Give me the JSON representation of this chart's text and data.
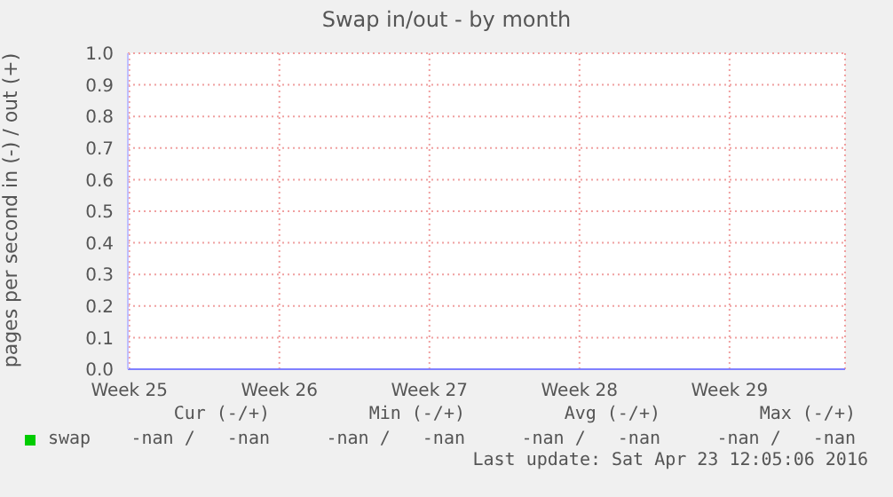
{
  "chart_data": {
    "type": "line",
    "title": "Swap in/out - by month",
    "ylabel": "pages per second in (-) / out (+)",
    "categories": [
      "Week 25",
      "Week 26",
      "Week 27",
      "Week 28",
      "Week 29"
    ],
    "series": [
      {
        "name": "swap",
        "color": "#00cc00",
        "values": [
          null,
          null,
          null,
          null,
          null
        ]
      }
    ],
    "ylim": [
      0,
      1
    ],
    "yticks": [
      {
        "value": 0,
        "label": "0.0"
      },
      {
        "value": 0.1,
        "label": "0.1"
      },
      {
        "value": 0.2,
        "label": "0.2"
      },
      {
        "value": 0.3,
        "label": "0.3"
      },
      {
        "value": 0.4,
        "label": "0.4"
      },
      {
        "value": 0.5,
        "label": "0.5"
      },
      {
        "value": 0.6,
        "label": "0.6"
      },
      {
        "value": 0.7,
        "label": "0.7"
      },
      {
        "value": 0.8,
        "label": "0.8"
      },
      {
        "value": 0.9,
        "label": "0.9"
      },
      {
        "value": 1,
        "label": "1.0"
      }
    ],
    "grid": true,
    "legend": "bottom",
    "annotations": [
      "Cur (-/+)",
      "Min (-/+)",
      "Avg (-/+)",
      "Max (-/+)",
      "-nan /   -nan",
      "-nan /   -nan",
      "-nan /   -nan",
      "-nan /   -nan",
      "Last update: Sat Apr 23 12:05:06 2016"
    ]
  }
}
